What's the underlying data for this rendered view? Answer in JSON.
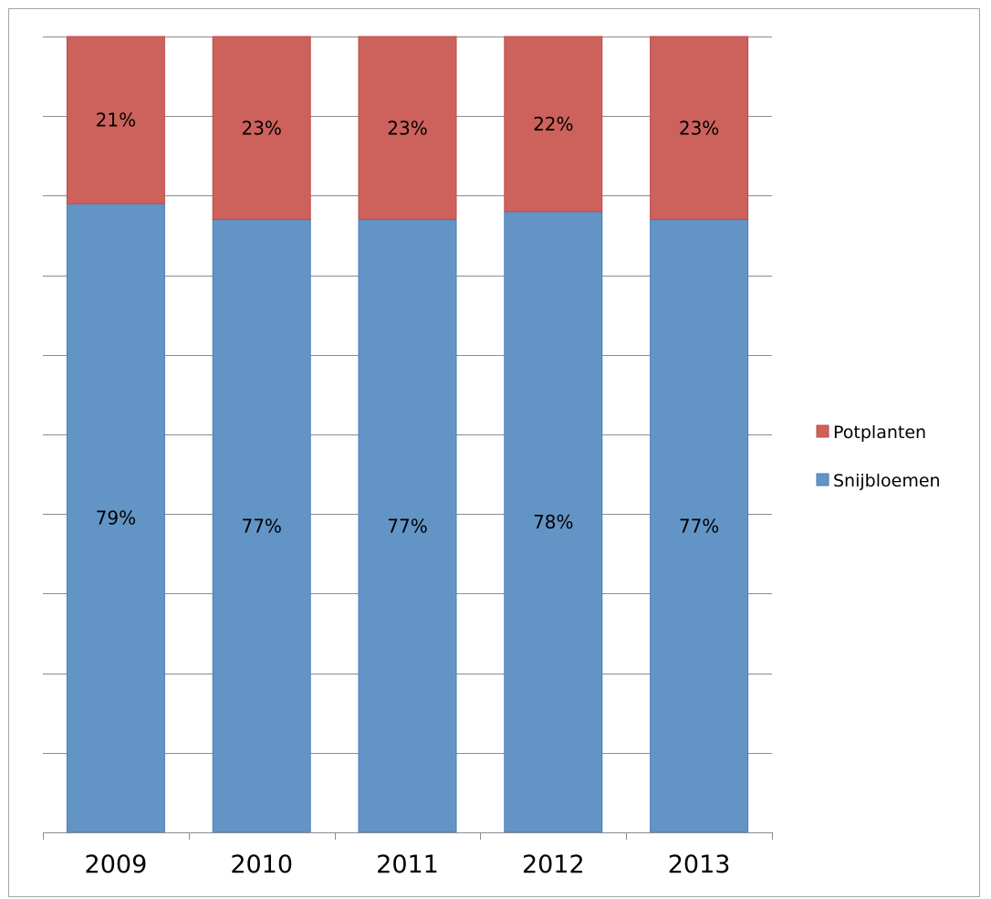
{
  "chart_data": {
    "type": "bar",
    "stacked": true,
    "percent": true,
    "categories": [
      "2009",
      "2010",
      "2011",
      "2012",
      "2013"
    ],
    "series": [
      {
        "name": "Snijbloemen",
        "values": [
          79,
          77,
          77,
          78,
          77
        ],
        "labels": [
          "79%",
          "77%",
          "77%",
          "78%",
          "77%"
        ],
        "color": "#6394c6"
      },
      {
        "name": "Potplanten",
        "values": [
          21,
          23,
          23,
          22,
          23
        ],
        "labels": [
          "21%",
          "23%",
          "23%",
          "22%",
          "23%"
        ],
        "color": "#cd625c"
      }
    ],
    "title": "",
    "xlabel": "",
    "ylabel": "",
    "ylim": [
      0,
      100
    ],
    "grid": true,
    "legend": {
      "position": "right",
      "order": [
        "Potplanten",
        "Snijbloemen"
      ]
    },
    "y_tick_labels_visible": false
  }
}
